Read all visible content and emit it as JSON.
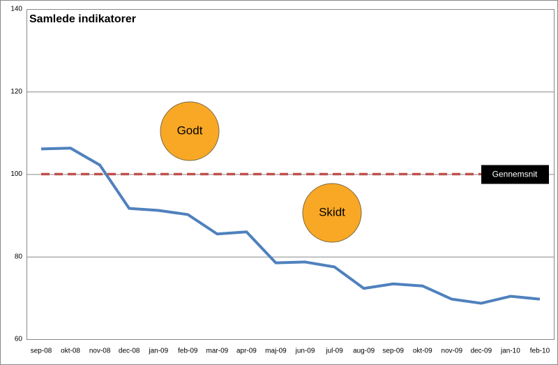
{
  "chart_data": {
    "type": "line",
    "title": "Samlede indikatorer",
    "categories": [
      "sep-08",
      "okt-08",
      "nov-08",
      "dec-08",
      "jan-09",
      "feb-09",
      "mar-09",
      "apr-09",
      "maj-09",
      "jun-09",
      "jul-09",
      "aug-09",
      "sep-09",
      "okt-09",
      "nov-09",
      "dec-09",
      "jan-10",
      "feb-10"
    ],
    "series": [
      {
        "name": "Samlede indikatorer",
        "color": "#4f81bd",
        "values": [
          106.1,
          106.3,
          102.2,
          91.7,
          91.2,
          90.2,
          85.5,
          86.0,
          78.5,
          78.7,
          77.5,
          72.3,
          73.4,
          72.9,
          69.7,
          68.7,
          70.4,
          69.7
        ]
      },
      {
        "name": "Gennemsnit",
        "color": "#c0504d",
        "dashed": true,
        "values": [
          100,
          100,
          100,
          100,
          100,
          100,
          100,
          100,
          100,
          100,
          100,
          100,
          100,
          100,
          100,
          100,
          null,
          null
        ]
      }
    ],
    "annotations": [
      "Godt",
      "Skidt"
    ],
    "ylim": [
      60,
      140
    ],
    "yticks": [
      60,
      80,
      100,
      120,
      140
    ],
    "grid": true
  }
}
